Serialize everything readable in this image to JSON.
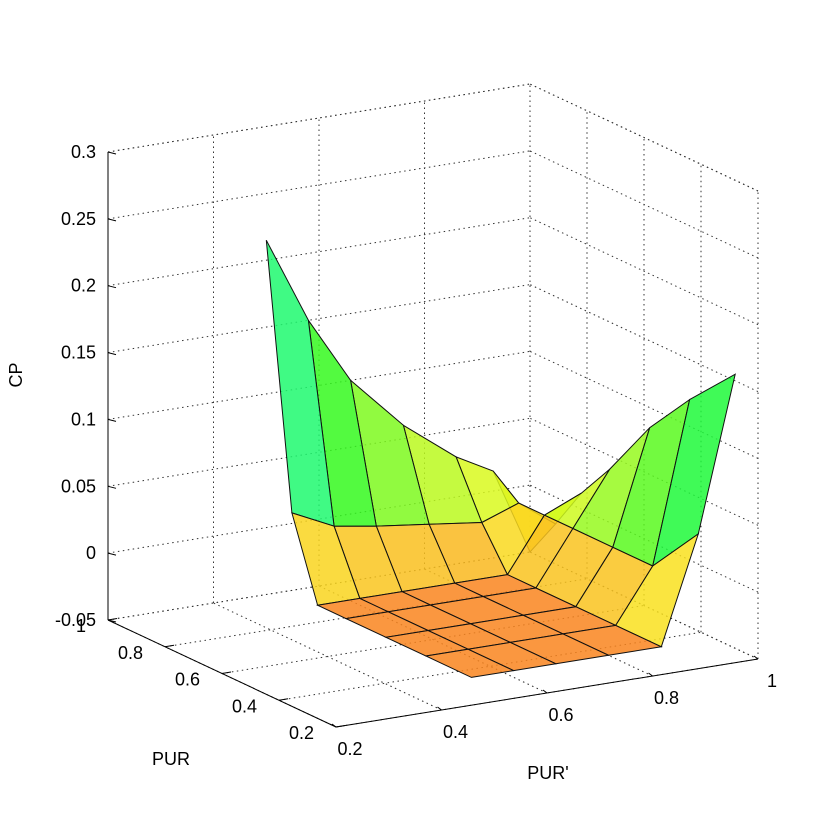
{
  "chart_data": {
    "type": "surface",
    "title": "",
    "xlabel": "PUR'",
    "ylabel": "PUR",
    "zlabel": "CP",
    "xlim": [
      0.2,
      1
    ],
    "ylim": [
      0.2,
      1
    ],
    "zlim": [
      -0.05,
      0.3
    ],
    "x_ticks": [
      0.2,
      0.4,
      0.6,
      0.8,
      1
    ],
    "y_ticks": [
      0.2,
      0.4,
      0.6,
      0.8,
      1
    ],
    "z_ticks": [
      -0.05,
      0,
      0.05,
      0.1,
      0.15,
      0.2,
      0.25,
      0.3
    ],
    "x_tick_labels": [
      "0.2",
      "0.4",
      "0.6",
      "0.8",
      "1"
    ],
    "y_tick_labels": [
      "0.2",
      "0.4",
      "0.6",
      "0.8",
      "1"
    ],
    "z_tick_labels": [
      "-0.05",
      "0",
      "0.05",
      "0.1",
      "0.15",
      "0.2",
      "0.25",
      "0.3"
    ],
    "grid": true,
    "colormap": "hsv",
    "color_range": [
      -0.05,
      0.3
    ],
    "x": [
      0.5,
      0.58,
      0.66,
      0.76,
      0.86,
      0.93,
      1.0
    ],
    "y": [
      0.28,
      0.44,
      0.58,
      0.72,
      0.82,
      0.91,
      1.0
    ],
    "z": [
      [
        -0.04,
        -0.04,
        -0.04,
        -0.04,
        -0.04,
        0.04,
        0.155
      ],
      [
        -0.04,
        -0.04,
        -0.04,
        -0.04,
        -0.04,
        0.0,
        0.12
      ],
      [
        -0.04,
        -0.04,
        -0.04,
        -0.04,
        -0.04,
        0.0,
        0.085
      ],
      [
        -0.04,
        -0.04,
        -0.04,
        -0.04,
        -0.04,
        0.0,
        0.04
      ],
      [
        -0.04,
        -0.04,
        -0.04,
        -0.04,
        -0.04,
        0.0,
        0.012
      ],
      [
        0.02,
        0.005,
        0.0,
        -0.005,
        -0.01,
        0.0,
        -0.02
      ],
      [
        0.215,
        0.15,
        0.1,
        0.06,
        0.03,
        0.015,
        -0.05
      ]
    ]
  }
}
